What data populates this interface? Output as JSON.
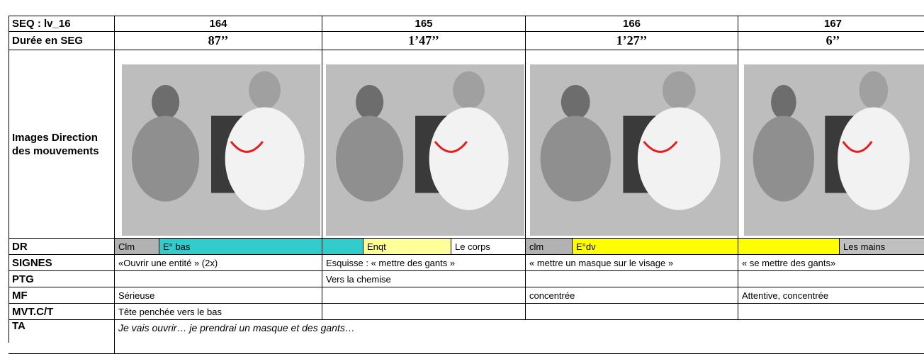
{
  "table": {
    "header": [
      "SEQ : lv_16",
      "164",
      "165",
      "166",
      "167"
    ],
    "duration": {
      "label": "Durée en SEG",
      "values": [
        "87’’",
        "1’47’’",
        "1’27’’",
        "6’’"
      ]
    },
    "images": {
      "label": "Images Direction des mouvements"
    },
    "dr": {
      "label": "DR",
      "segments": [
        {
          "text": "Clm",
          "color": "#b2b2b2"
        },
        {
          "text": "E° bas",
          "color": "#33cccc"
        },
        {
          "color": "#33cccc"
        },
        {
          "text": "Enqt",
          "color": "#ffff99"
        },
        {
          "text": "Le corps",
          "color": "#ffffff"
        },
        {
          "text": "clm",
          "color": "#b2b2b2"
        },
        {
          "text": "E°dv",
          "color": "#ffff00"
        },
        {
          "color": "#ffff00"
        },
        {
          "text": "Les mains",
          "color": "#c0c0c0"
        }
      ]
    },
    "rows": [
      {
        "label": "SIGNES",
        "cells": [
          "«Ouvrir une entité » (2x)",
          "Esquisse : « mettre des gants »",
          "« mettre un masque sur le visage »",
          "« se mettre des gants»"
        ]
      },
      {
        "label": "PTG",
        "cells": [
          null,
          "Vers la chemise",
          null,
          null
        ]
      },
      {
        "label": "MF",
        "cells": [
          "Sérieuse",
          null,
          "concentrée",
          "Attentive, concentrée"
        ]
      },
      {
        "label": "MVT.C/T",
        "cells": [
          "Tête penchée vers le bas",
          null,
          null,
          null
        ]
      }
    ],
    "ta": {
      "label": "TA",
      "text": "Je vais ouvrir… je prendrai un masque et des gants…"
    }
  }
}
